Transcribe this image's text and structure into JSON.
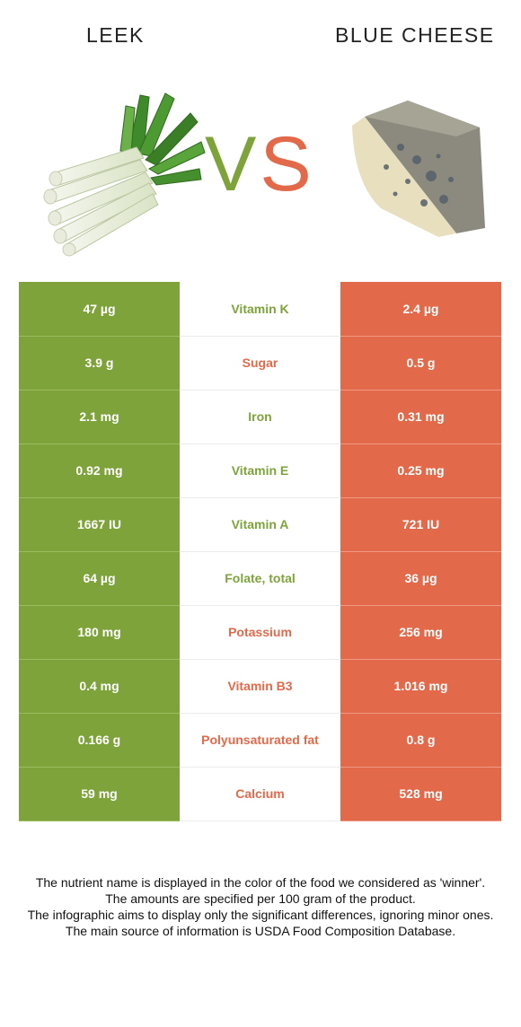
{
  "header": {
    "left_food": "LEEK",
    "right_food": "BLUE CHEESE",
    "vs_v": "V",
    "vs_s": "S"
  },
  "colors": {
    "left_winner": "#7ea33a",
    "right_winner": "#e2694a"
  },
  "illustrations": {
    "left": "leek-illustration",
    "right": "blue-cheese-illustration"
  },
  "rows": [
    {
      "left": "47 µg",
      "nutrient": "Vitamin K",
      "right": "2.4 µg",
      "winner": "left"
    },
    {
      "left": "3.9 g",
      "nutrient": "Sugar",
      "right": "0.5 g",
      "winner": "right"
    },
    {
      "left": "2.1 mg",
      "nutrient": "Iron",
      "right": "0.31 mg",
      "winner": "left"
    },
    {
      "left": "0.92 mg",
      "nutrient": "Vitamin E",
      "right": "0.25 mg",
      "winner": "left"
    },
    {
      "left": "1667 IU",
      "nutrient": "Vitamin A",
      "right": "721 IU",
      "winner": "left"
    },
    {
      "left": "64 µg",
      "nutrient": "Folate, total",
      "right": "36 µg",
      "winner": "left"
    },
    {
      "left": "180 mg",
      "nutrient": "Potassium",
      "right": "256 mg",
      "winner": "right"
    },
    {
      "left": "0.4 mg",
      "nutrient": "Vitamin B3",
      "right": "1.016 mg",
      "winner": "right"
    },
    {
      "left": "0.166 g",
      "nutrient": "Polyunsaturated fat",
      "right": "0.8 g",
      "winner": "right"
    },
    {
      "left": "59 mg",
      "nutrient": "Calcium",
      "right": "528 mg",
      "winner": "right"
    }
  ],
  "footnotes": [
    "The nutrient name is displayed in the color of the food we considered as 'winner'.",
    "The amounts are specified per 100 gram of the product.",
    "The infographic aims to display only the significant differences, ignoring minor ones.",
    "The main source of information is USDA Food Composition Database."
  ]
}
